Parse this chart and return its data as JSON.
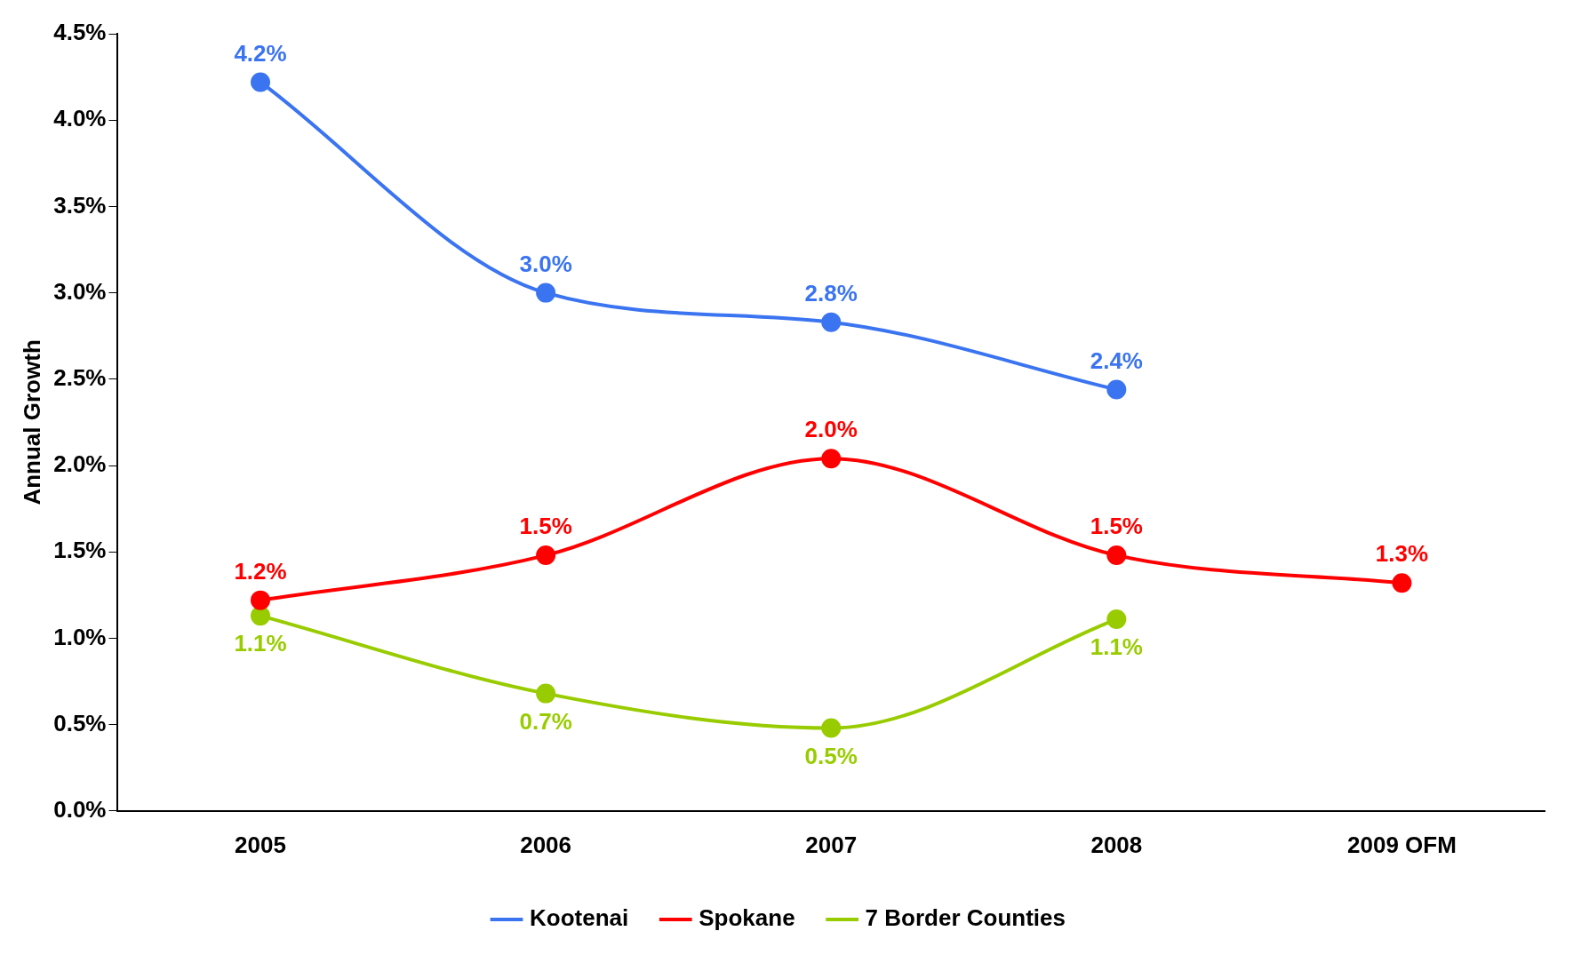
{
  "chart_data": {
    "type": "line",
    "ylabel": "Annual Growth",
    "categories": [
      "2005",
      "2006",
      "2007",
      "2008",
      "2009 OFM"
    ],
    "series": [
      {
        "name": "Kootenai",
        "color": "#3b74f0",
        "values": [
          4.22,
          3.0,
          2.83,
          2.44,
          null
        ],
        "value_labels": [
          "4.2%",
          "3.0%",
          "2.8%",
          "2.4%",
          null
        ]
      },
      {
        "name": "Spokane",
        "color": "#ff0000",
        "values": [
          1.22,
          1.48,
          2.04,
          1.48,
          1.32
        ],
        "value_labels": [
          "1.2%",
          "1.5%",
          "2.0%",
          "1.5%",
          "1.3%"
        ]
      },
      {
        "name": "7 Border Counties",
        "color": "#99cc00",
        "values": [
          1.13,
          0.68,
          0.48,
          1.11,
          null
        ],
        "value_labels": [
          "1.1%",
          "0.7%",
          "0.5%",
          "1.1%",
          null
        ]
      }
    ],
    "ylim": [
      0,
      4.5
    ],
    "yticks": [
      {
        "value": 0,
        "label": "0.0%"
      },
      {
        "value": 0.5,
        "label": "0.5%"
      },
      {
        "value": 1,
        "label": "1.0%"
      },
      {
        "value": 1.5,
        "label": "1.5%"
      },
      {
        "value": 2,
        "label": "2.0%"
      },
      {
        "value": 2.5,
        "label": "2.5%"
      },
      {
        "value": 3,
        "label": "3.0%"
      },
      {
        "value": 3.5,
        "label": "3.5%"
      },
      {
        "value": 4,
        "label": "4.0%"
      },
      {
        "value": 4.5,
        "label": "4.5%"
      }
    ],
    "grid": false,
    "legend": "bottom",
    "marker": "circle",
    "line_style": "solid"
  }
}
